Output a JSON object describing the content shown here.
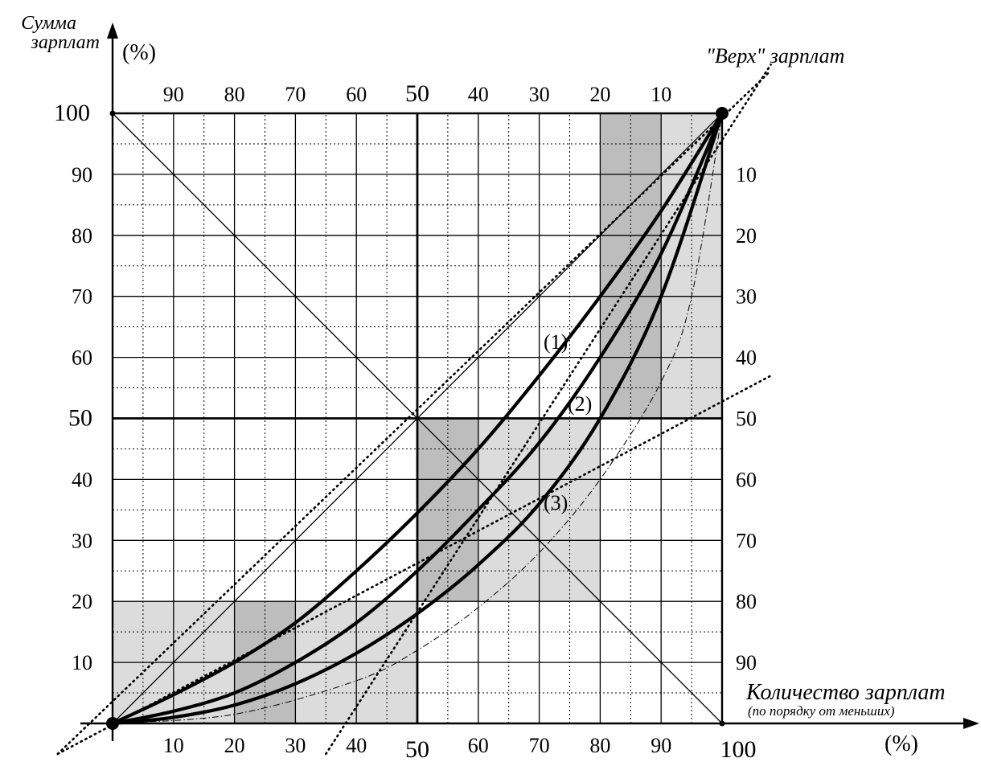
{
  "chart_data": {
    "type": "line",
    "y_axis_title": [
      "Сумма",
      "зарплат"
    ],
    "y_unit": "(%)",
    "x_axis_title": "Количество зарплат",
    "x_axis_subtitle": "(по порядку от меньших)",
    "x_unit": "(%)",
    "top_right_label": "\"Верх\" зарплат",
    "xlim": [
      0,
      100
    ],
    "ylim": [
      0,
      100
    ],
    "x_ticks": [
      "10",
      "20",
      "30",
      "40",
      "50",
      "60",
      "70",
      "80",
      "90",
      "100"
    ],
    "y_ticks": [
      "10",
      "20",
      "30",
      "40",
      "50",
      "60",
      "70",
      "80",
      "90",
      "100"
    ],
    "top_ticks": [
      "90",
      "80",
      "70",
      "60",
      "50",
      "40",
      "30",
      "20",
      "10"
    ],
    "right_ticks": [
      "10",
      "20",
      "30",
      "40",
      "50",
      "60",
      "70",
      "80",
      "90"
    ],
    "grid": true,
    "light_regions": [
      {
        "x": [
          0,
          50
        ],
        "y": [
          0,
          20
        ]
      },
      {
        "x": [
          50,
          80
        ],
        "y": [
          20,
          50
        ]
      },
      {
        "x": [
          80,
          100
        ],
        "y": [
          50,
          100
        ]
      }
    ],
    "dark_regions": [
      {
        "x": [
          20,
          30
        ],
        "y": [
          0,
          20
        ]
      },
      {
        "x": [
          50,
          60
        ],
        "y": [
          20,
          50
        ]
      },
      {
        "x": [
          80,
          90
        ],
        "y": [
          50,
          100
        ]
      }
    ],
    "series": [
      {
        "name": "(1)",
        "x": [
          0,
          10,
          20,
          30,
          40,
          50,
          60,
          70,
          80,
          90,
          100
        ],
        "y": [
          0,
          4.7,
          10,
          16.5,
          25,
          34.5,
          45,
          57,
          70,
          84,
          100
        ]
      },
      {
        "name": "(2)",
        "x": [
          0,
          10,
          20,
          30,
          40,
          50,
          60,
          70,
          80,
          90,
          100
        ],
        "y": [
          0,
          2,
          5,
          10,
          16.5,
          25,
          35,
          46,
          60,
          77,
          100
        ]
      },
      {
        "name": "(3)",
        "x": [
          0,
          10,
          20,
          30,
          40,
          50,
          60,
          70,
          80,
          90,
          100
        ],
        "y": [
          0,
          1,
          3,
          6.5,
          11.5,
          18,
          26,
          36,
          50,
          70,
          100
        ]
      }
    ],
    "reference_curve": {
      "x": [
        0,
        20,
        40,
        50,
        60,
        70,
        80,
        90,
        95,
        100
      ],
      "y": [
        0,
        1.5,
        7,
        12,
        19,
        28,
        40,
        56,
        70,
        100
      ]
    },
    "dotted_lines": [
      {
        "x": [
          -9,
          108
        ],
        "y": [
          -5,
          57
        ]
      },
      {
        "x": [
          -9,
          108
        ],
        "y": [
          -5,
          107
        ]
      },
      {
        "x": [
          35,
          108
        ],
        "y": [
          -5,
          108
        ]
      }
    ]
  }
}
